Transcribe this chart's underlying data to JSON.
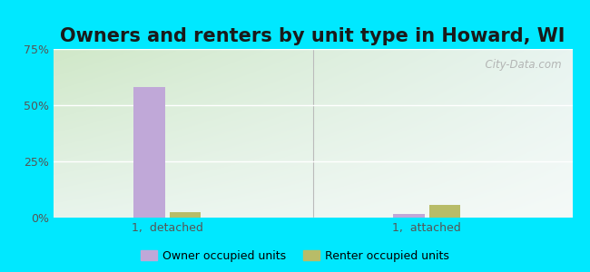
{
  "title": "Owners and renters by unit type in Howard, WI",
  "categories": [
    "1,  detached",
    "1,  attached"
  ],
  "owner_values": [
    58.0,
    1.5
  ],
  "renter_values": [
    2.5,
    5.5
  ],
  "owner_color": "#c0a8d8",
  "renter_color": "#b8bc68",
  "ylim": [
    0,
    75
  ],
  "yticks": [
    0,
    25,
    50,
    75
  ],
  "ytick_labels": [
    "0%",
    "25%",
    "50%",
    "75%"
  ],
  "background_outer": "#00e8ff",
  "title_fontsize": 15,
  "bar_width": 0.06,
  "group_centers": [
    0.22,
    0.72
  ],
  "xlim": [
    0,
    1
  ],
  "watermark": "  City-Data.com"
}
